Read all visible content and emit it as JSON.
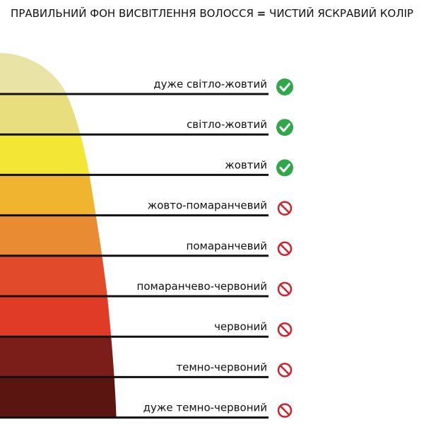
{
  "header": {
    "title": "ПРАВИЛЬНИЙ ФОН ВИСВІТЛЕННЯ ВОЛОССЯ",
    "equals": "=",
    "result": "ЧИСТИЙ ЯСКРАВИЙ КОЛІР"
  },
  "levels": [
    {
      "label": "дуже світло-жовтий",
      "ok": true,
      "color": "#e9e4a6"
    },
    {
      "label": "світло-жовтий",
      "ok": true,
      "color": "#e8de7e"
    },
    {
      "label": "жовтий",
      "ok": true,
      "color": "#f3e634"
    },
    {
      "label": "жовто-помаранчевий",
      "ok": false,
      "color": "#f1b431"
    },
    {
      "label": "помаранчевий",
      "ok": false,
      "color": "#e98b32"
    },
    {
      "label": "помаранчево-червоний",
      "ok": false,
      "color": "#e14a2a"
    },
    {
      "label": "червоний",
      "ok": false,
      "color": "#df3b27"
    },
    {
      "label": "темно-червоний",
      "ok": false,
      "color": "#7b1d19"
    },
    {
      "label": "дуже темно-червоний",
      "ok": false,
      "color": "#5a1511"
    }
  ]
}
